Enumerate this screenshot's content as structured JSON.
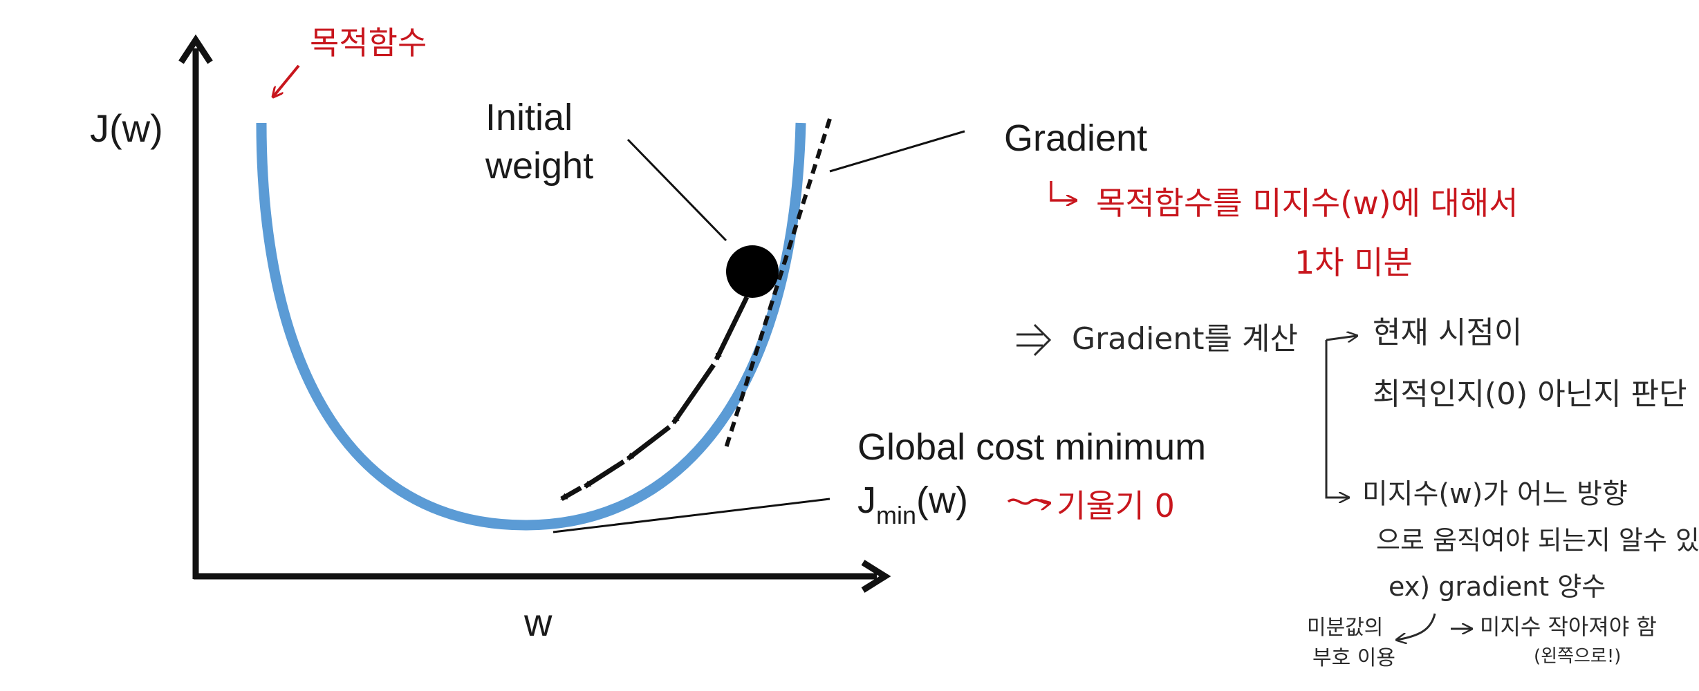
{
  "axes": {
    "y_label": "J(w)",
    "x_label": "w"
  },
  "labels": {
    "initial_weight_line1": "Initial",
    "initial_weight_line2": "weight",
    "gradient": "Gradient",
    "global_min": "Global cost minimum",
    "jmin_main": "J",
    "jmin_sub": "min",
    "jmin_tail": "(w)"
  },
  "annotations": {
    "objective": "목적함수",
    "gradient_def_line1": "목적함수를 미지수(w)에 대해서",
    "gradient_def_line2": "1차 미분",
    "slope_zero": "기울기 0",
    "intro": "Gradient를 계산",
    "branch1_line1": "현재 시점이",
    "branch1_line2": "최적인지(0) 아닌지 판단",
    "branch2_line1": "미지수(w)가 어느 방향",
    "branch2_line2": "으로 움직여야 되는지 알수 있음",
    "example": "ex) gradient 양수",
    "note_left_line1": "미분값의",
    "note_left_line2": "부호 이용",
    "note_right": "미지수 작아져야 함",
    "note_right_sub": "(왼쪽으로!)"
  },
  "colors": {
    "curve": "#5b9bd5",
    "axis": "#111111",
    "handwriting_red": "#c8161d",
    "handwriting_ink": "#2a2a2a"
  }
}
